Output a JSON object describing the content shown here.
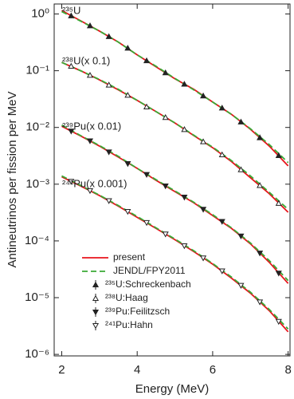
{
  "chart_data": {
    "type": "line",
    "x_label": "Energy (MeV)",
    "y_label": "Antineutrinos per fission per MeV",
    "xlim": [
      1.8,
      8.05
    ],
    "xticks": [
      2,
      4,
      6,
      8
    ],
    "ylim": [
      9.4e-07,
      1.5
    ],
    "log_y": true,
    "yticks": [
      {
        "value": 1,
        "label": "10⁰"
      },
      {
        "value": 0.1,
        "label": "10⁻¹"
      },
      {
        "value": 0.01,
        "label": "10⁻²"
      },
      {
        "value": 0.001,
        "label": "10⁻³"
      },
      {
        "value": 0.0001,
        "label": "10⁻⁴"
      },
      {
        "value": 1e-05,
        "label": "10⁻⁵"
      },
      {
        "value": 1e-06,
        "label": "10⁻⁶"
      }
    ],
    "curve_labels": [
      "²³⁵U",
      "²³⁸U(x 0.1)",
      "²³⁹Pu(x 0.01)",
      "²⁴¹Pu(x 0.001)"
    ],
    "x": [
      2,
      2.5,
      3,
      3.5,
      4,
      4.5,
      5,
      5.5,
      6,
      6.5,
      7,
      7.5,
      8
    ],
    "marker_x": [
      2.25,
      2.75,
      3.25,
      3.75,
      4.25,
      4.75,
      5.25,
      5.75,
      6.25,
      6.75,
      7.25,
      7.75
    ],
    "models": [
      {
        "name": "present",
        "color": "#e8141b",
        "dashed": false,
        "curves": [
          [
            1.15,
            0.76,
            0.5,
            0.32,
            0.19,
            0.117,
            0.072,
            0.047,
            0.028,
            0.017,
            0.0093,
            0.0047,
            0.0021
          ],
          [
            0.14,
            0.1,
            0.069,
            0.046,
            0.03,
            0.019,
            0.012,
            0.0072,
            0.0044,
            0.0025,
            0.0013,
            0.00068,
            0.00032
          ],
          [
            0.0105,
            0.0071,
            0.0047,
            0.003,
            0.0019,
            0.00117,
            0.00074,
            0.00047,
            0.00028,
            0.000166,
            8.9e-05,
            4.2e-05,
            1.78e-05
          ],
          [
            0.00135,
            0.00093,
            0.00063,
            0.00041,
            0.00026,
            0.000166,
            0.000105,
            6.5e-05,
            3.9e-05,
            2.2e-05,
            1.2e-05,
            5.9e-06,
            2.5e-06
          ]
        ]
      },
      {
        "name": "JENDL/FPY2011",
        "color": "#3aa935",
        "dashed": true,
        "curves": [
          [
            1.1,
            0.75,
            0.5,
            0.32,
            0.19,
            0.12,
            0.073,
            0.046,
            0.028,
            0.017,
            0.0095,
            0.005,
            0.0024
          ],
          [
            0.14,
            0.1,
            0.07,
            0.047,
            0.03,
            0.019,
            0.012,
            0.0073,
            0.0045,
            0.0026,
            0.0014,
            0.00072,
            0.00036
          ],
          [
            0.011,
            0.0072,
            0.0048,
            0.0031,
            0.0019,
            0.0012,
            0.00076,
            0.00048,
            0.00029,
            0.00017,
            9.2e-05,
            4.5e-05,
            2e-05
          ],
          [
            0.0014,
            0.00095,
            0.00064,
            0.00042,
            0.00027,
            0.00017,
            0.000108,
            6.7e-05,
            4e-05,
            2.3e-05,
            1.25e-05,
            6.2e-06,
            2.8e-06
          ]
        ]
      }
    ],
    "measurements": [
      {
        "name": "²³⁵U:Schreckenbach",
        "marker": "filled-up",
        "values": [
          0.93,
          0.62,
          0.4,
          0.25,
          0.15,
          0.092,
          0.058,
          0.036,
          0.022,
          0.0125,
          0.0066,
          0.0032
        ]
      },
      {
        "name": "²³⁸U:Haag",
        "marker": "open-up",
        "values": [
          0.12,
          0.083,
          0.056,
          0.037,
          0.023,
          0.015,
          0.0092,
          0.0056,
          0.0033,
          0.0018,
          0.00095,
          0.00046
        ]
      },
      {
        "name": "²³⁹Pu:Feilitzsch",
        "marker": "filled-down",
        "values": [
          0.0086,
          0.0058,
          0.0037,
          0.0023,
          0.00148,
          0.00093,
          0.00059,
          0.00036,
          0.00022,
          0.000122,
          6.1e-05,
          2.7e-05
        ]
      },
      {
        "name": "²⁴¹Pu:Hahn",
        "marker": "open-down",
        "values": [
          0.00112,
          0.00077,
          0.00051,
          0.00033,
          0.00021,
          0.000132,
          8.2e-05,
          5e-05,
          2.95e-05,
          1.64e-05,
          8.4e-06,
          3.8e-06
        ]
      }
    ]
  }
}
